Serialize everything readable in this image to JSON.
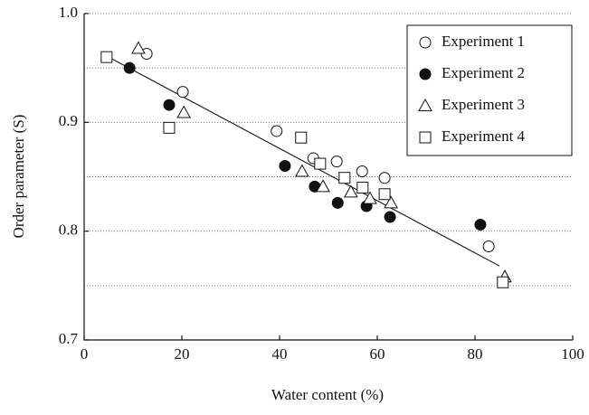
{
  "chart_data": {
    "type": "scatter",
    "xlabel": "Water content (%)",
    "ylabel": "Order parameter (S)",
    "xlim": [
      0,
      100
    ],
    "ylim": [
      0.7,
      1.0
    ],
    "xticks": [
      0,
      20,
      40,
      60,
      80,
      100
    ],
    "yticks": [
      0.7,
      0.8,
      0.9,
      {
        "value": 1.0,
        "label": "1.0"
      }
    ],
    "grid_y": [
      0.75,
      0.8,
      0.85,
      0.9,
      0.95,
      1.0
    ],
    "legend": "upper right",
    "series": [
      {
        "name": "Experiment 1",
        "marker": "circle",
        "filled": false,
        "color": "#111111",
        "x": [
          12.8,
          20.2,
          39.4,
          46.9,
          51.7,
          56.9,
          61.5,
          82.8
        ],
        "values": [
          0.963,
          0.928,
          0.892,
          0.867,
          0.864,
          0.855,
          0.849,
          0.786
        ]
      },
      {
        "name": "Experiment 2",
        "marker": "circle",
        "filled": true,
        "color": "#111111",
        "x": [
          9.3,
          17.4,
          41.1,
          47.2,
          51.9,
          57.8,
          62.6,
          81.1
        ],
        "values": [
          0.95,
          0.916,
          0.86,
          0.841,
          0.826,
          0.823,
          0.813,
          0.806
        ]
      },
      {
        "name": "Experiment 3",
        "marker": "triangle",
        "filled": false,
        "color": "#111111",
        "x": [
          11.1,
          20.4,
          44.6,
          48.9,
          54.6,
          58.5,
          62.8,
          86.1
        ],
        "values": [
          0.968,
          0.909,
          0.855,
          0.841,
          0.836,
          0.83,
          0.826,
          0.758
        ]
      },
      {
        "name": "Experiment 4",
        "marker": "square",
        "filled": false,
        "color": "#111111",
        "x": [
          4.6,
          17.4,
          44.4,
          48.3,
          53.3,
          57.0,
          61.5,
          85.7
        ],
        "values": [
          0.96,
          0.895,
          0.886,
          0.862,
          0.849,
          0.84,
          0.834,
          0.753
        ]
      }
    ],
    "trend_line": {
      "x": [
        5,
        85
      ],
      "values": [
        0.96,
        0.768
      ],
      "color": "#111111"
    }
  }
}
